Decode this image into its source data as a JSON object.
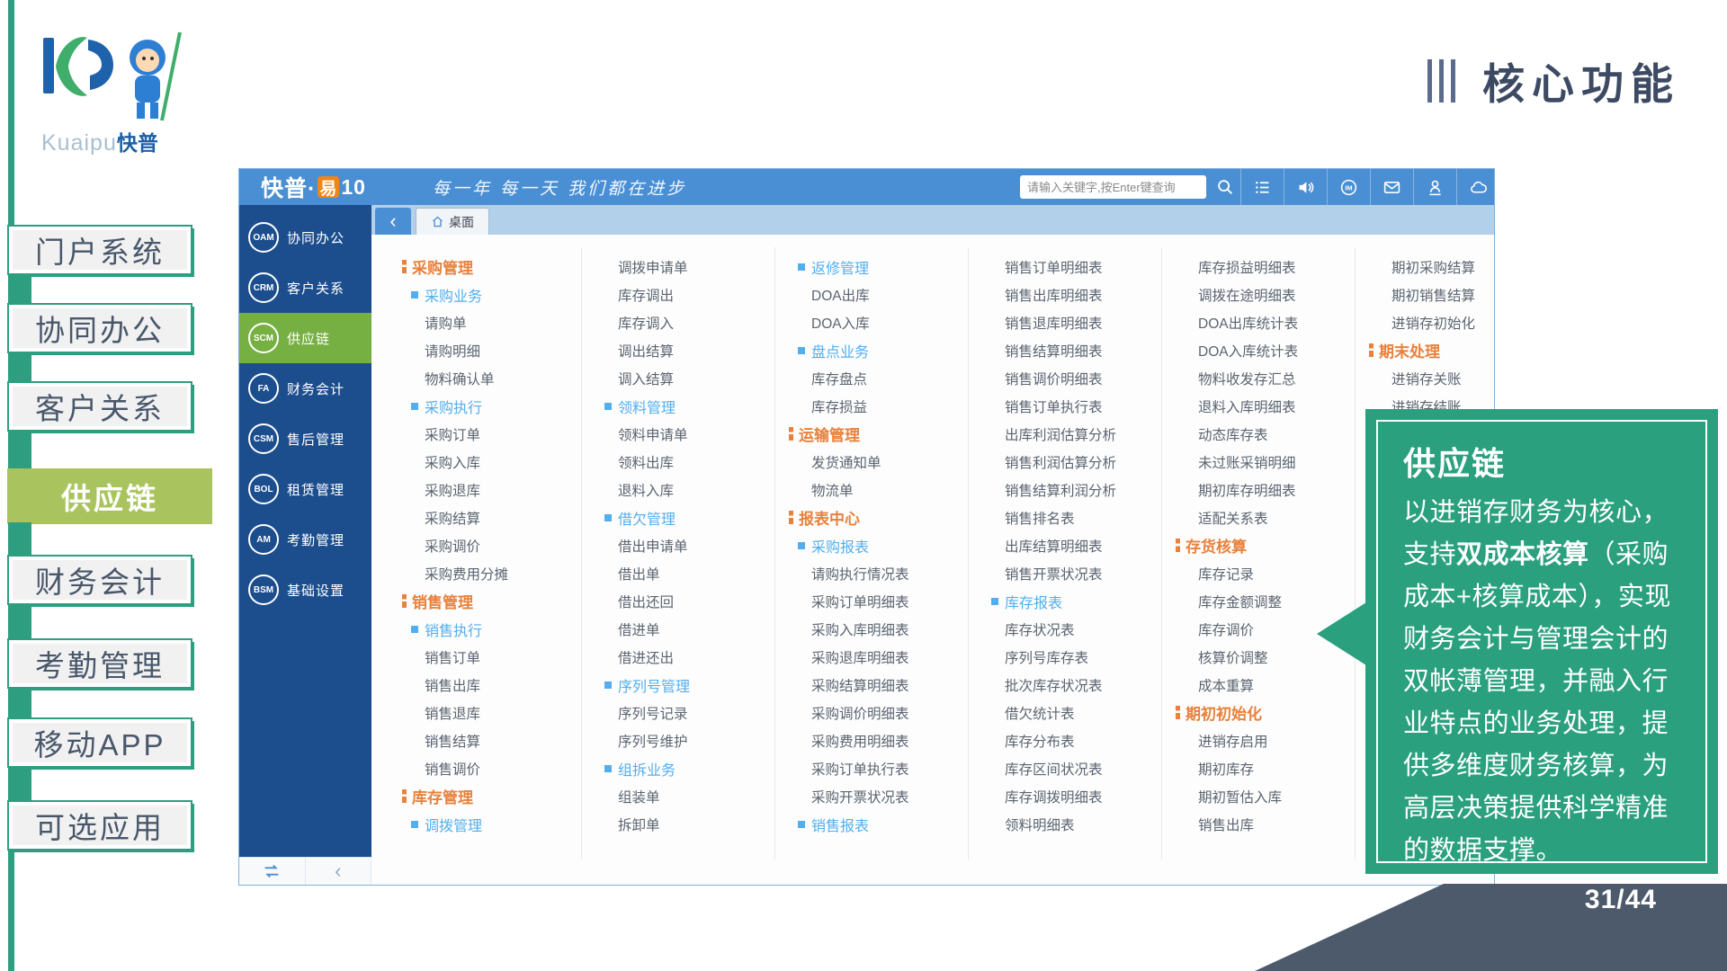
{
  "slide": {
    "title": "核心功能",
    "page_number": "31/44"
  },
  "logo": {
    "brand_en": "Kuaipu",
    "brand_cn": "快普"
  },
  "side_nav": {
    "items": [
      {
        "id": "portal",
        "label": "门户系统",
        "active": false
      },
      {
        "id": "office",
        "label": "协同办公",
        "active": false
      },
      {
        "id": "crm",
        "label": "客户关系",
        "active": false
      },
      {
        "id": "scm",
        "label": "供应链",
        "active": true
      },
      {
        "id": "finance",
        "label": "财务会计",
        "active": false
      },
      {
        "id": "attendance",
        "label": "考勤管理",
        "active": false
      },
      {
        "id": "mobile-app",
        "label": "移动APP",
        "active": false
      },
      {
        "id": "optional",
        "label": "可选应用",
        "active": false
      }
    ]
  },
  "app": {
    "header": {
      "product": "快普·",
      "product_yi": "易",
      "version": "10",
      "slogan": "每一年 每一天 我们都在进步",
      "search_placeholder": "请输入关键字,按Enter键查询",
      "icons": [
        "list-icon",
        "speaker-icon",
        "im-icon",
        "mail-icon",
        "user-icon",
        "cloud-icon"
      ]
    },
    "nav": {
      "items": [
        {
          "code": "OAM",
          "label": "协同办公",
          "active": false
        },
        {
          "code": "CRM",
          "label": "客户关系",
          "active": false
        },
        {
          "code": "SCM",
          "label": "供应链",
          "active": true
        },
        {
          "code": "FA",
          "label": "财务会计",
          "active": false
        },
        {
          "code": "CSM",
          "label": "售后管理",
          "active": false
        },
        {
          "code": "BOL",
          "label": "租赁管理",
          "active": false
        },
        {
          "code": "AM",
          "label": "考勤管理",
          "active": false
        },
        {
          "code": "BSM",
          "label": "基础设置",
          "active": false
        }
      ]
    },
    "tabbar": {
      "tab": "桌面"
    },
    "columns": [
      [
        {
          "t": "c",
          "label": "采购管理"
        },
        {
          "t": "s",
          "label": "采购业务"
        },
        {
          "t": "i",
          "label": "请购单"
        },
        {
          "t": "i",
          "label": "请购明细"
        },
        {
          "t": "i",
          "label": "物料确认单"
        },
        {
          "t": "s",
          "label": "采购执行"
        },
        {
          "t": "i",
          "label": "采购订单"
        },
        {
          "t": "i",
          "label": "采购入库"
        },
        {
          "t": "i",
          "label": "采购退库"
        },
        {
          "t": "i",
          "label": "采购结算"
        },
        {
          "t": "i",
          "label": "采购调价"
        },
        {
          "t": "i",
          "label": "采购费用分摊"
        },
        {
          "t": "c",
          "label": "销售管理"
        },
        {
          "t": "s",
          "label": "销售执行"
        },
        {
          "t": "i",
          "label": "销售订单"
        },
        {
          "t": "i",
          "label": "销售出库"
        },
        {
          "t": "i",
          "label": "销售退库"
        },
        {
          "t": "i",
          "label": "销售结算"
        },
        {
          "t": "i",
          "label": "销售调价"
        },
        {
          "t": "c",
          "label": "库存管理"
        },
        {
          "t": "s",
          "label": "调拨管理"
        }
      ],
      [
        {
          "t": "i",
          "label": "调拨申请单"
        },
        {
          "t": "i",
          "label": "库存调出"
        },
        {
          "t": "i",
          "label": "库存调入"
        },
        {
          "t": "i",
          "label": "调出结算"
        },
        {
          "t": "i",
          "label": "调入结算"
        },
        {
          "t": "s",
          "label": "领料管理"
        },
        {
          "t": "i",
          "label": "领料申请单"
        },
        {
          "t": "i",
          "label": "领料出库"
        },
        {
          "t": "i",
          "label": "退料入库"
        },
        {
          "t": "s",
          "label": "借欠管理"
        },
        {
          "t": "i",
          "label": "借出申请单"
        },
        {
          "t": "i",
          "label": "借出单"
        },
        {
          "t": "i",
          "label": "借出还回"
        },
        {
          "t": "i",
          "label": "借进单"
        },
        {
          "t": "i",
          "label": "借进还出"
        },
        {
          "t": "s",
          "label": "序列号管理"
        },
        {
          "t": "i",
          "label": "序列号记录"
        },
        {
          "t": "i",
          "label": "序列号维护"
        },
        {
          "t": "s",
          "label": "组拆业务"
        },
        {
          "t": "i",
          "label": "组装单"
        },
        {
          "t": "i",
          "label": "拆卸单"
        }
      ],
      [
        {
          "t": "s",
          "label": "返修管理"
        },
        {
          "t": "i",
          "label": "DOA出库"
        },
        {
          "t": "i",
          "label": "DOA入库"
        },
        {
          "t": "s",
          "label": "盘点业务"
        },
        {
          "t": "i",
          "label": "库存盘点"
        },
        {
          "t": "i",
          "label": "库存损益"
        },
        {
          "t": "c",
          "label": "运输管理"
        },
        {
          "t": "i",
          "label": "发货通知单"
        },
        {
          "t": "i",
          "label": "物流单"
        },
        {
          "t": "c",
          "label": "报表中心"
        },
        {
          "t": "s",
          "label": "采购报表"
        },
        {
          "t": "i",
          "label": "请购执行情况表"
        },
        {
          "t": "i",
          "label": "采购订单明细表"
        },
        {
          "t": "i",
          "label": "采购入库明细表"
        },
        {
          "t": "i",
          "label": "采购退库明细表"
        },
        {
          "t": "i",
          "label": "采购结算明细表"
        },
        {
          "t": "i",
          "label": "采购调价明细表"
        },
        {
          "t": "i",
          "label": "采购费用明细表"
        },
        {
          "t": "i",
          "label": "采购订单执行表"
        },
        {
          "t": "i",
          "label": "采购开票状况表"
        },
        {
          "t": "s",
          "label": "销售报表"
        }
      ],
      [
        {
          "t": "i",
          "label": "销售订单明细表"
        },
        {
          "t": "i",
          "label": "销售出库明细表"
        },
        {
          "t": "i",
          "label": "销售退库明细表"
        },
        {
          "t": "i",
          "label": "销售结算明细表"
        },
        {
          "t": "i",
          "label": "销售调价明细表"
        },
        {
          "t": "i",
          "label": "销售订单执行表"
        },
        {
          "t": "i",
          "label": "出库利润估算分析"
        },
        {
          "t": "i",
          "label": "销售利润估算分析"
        },
        {
          "t": "i",
          "label": "销售结算利润分析"
        },
        {
          "t": "i",
          "label": "销售排名表"
        },
        {
          "t": "i",
          "label": "出库结算明细表"
        },
        {
          "t": "i",
          "label": "销售开票状况表"
        },
        {
          "t": "s",
          "label": "库存报表"
        },
        {
          "t": "i",
          "label": "库存状况表"
        },
        {
          "t": "i",
          "label": "序列号库存表"
        },
        {
          "t": "i",
          "label": "批次库存状况表"
        },
        {
          "t": "i",
          "label": "借欠统计表"
        },
        {
          "t": "i",
          "label": "库存分布表"
        },
        {
          "t": "i",
          "label": "库存区间状况表"
        },
        {
          "t": "i",
          "label": "库存调拨明细表"
        },
        {
          "t": "i",
          "label": "领料明细表"
        }
      ],
      [
        {
          "t": "i",
          "label": "库存损益明细表"
        },
        {
          "t": "i",
          "label": "调拨在途明细表"
        },
        {
          "t": "i",
          "label": "DOA出库统计表"
        },
        {
          "t": "i",
          "label": "DOA入库统计表"
        },
        {
          "t": "i",
          "label": "物料收发存汇总"
        },
        {
          "t": "i",
          "label": "退料入库明细表"
        },
        {
          "t": "i",
          "label": "动态库存表"
        },
        {
          "t": "i",
          "label": "未过账采销明细"
        },
        {
          "t": "i",
          "label": "期初库存明细表"
        },
        {
          "t": "i",
          "label": "适配关系表"
        },
        {
          "t": "c",
          "label": "存货核算"
        },
        {
          "t": "i",
          "label": "库存记录"
        },
        {
          "t": "i",
          "label": "库存金额调整"
        },
        {
          "t": "i",
          "label": "库存调价"
        },
        {
          "t": "i",
          "label": "核算价调整"
        },
        {
          "t": "i",
          "label": "成本重算"
        },
        {
          "t": "c",
          "label": "期初初始化"
        },
        {
          "t": "i",
          "label": "进销存启用"
        },
        {
          "t": "i",
          "label": "期初库存"
        },
        {
          "t": "i",
          "label": "期初暂估入库"
        },
        {
          "t": "i",
          "label": "销售出库"
        }
      ],
      [
        {
          "t": "i",
          "label": "期初采购结算"
        },
        {
          "t": "i",
          "label": "期初销售结算"
        },
        {
          "t": "i",
          "label": "进销存初始化"
        },
        {
          "t": "c",
          "label": "期末处理"
        },
        {
          "t": "i",
          "label": "进销存关账"
        },
        {
          "t": "i",
          "label": "进销存结账"
        }
      ]
    ]
  },
  "callout": {
    "title": "供应链",
    "body": [
      {
        "text": "以进销存财务为核心，支持",
        "bold": false
      },
      {
        "text": "双成本核算",
        "bold": true
      },
      {
        "text": "（采购成本+核算成本），实现财务会计与管理会计的双帐薄管理，并融入行业特点的业务处理，提供多维度财务核算，为高层决策提供科学精准的数据支撑。",
        "bold": false
      }
    ]
  },
  "colors": {
    "accent_green": "#2e9e80",
    "active_side_item": "#a9c45e",
    "header_blue": "#4a8fd3",
    "app_sidebar_blue": "#1c4e8e",
    "nav_active_green": "#76b043",
    "category_orange": "#e8813c",
    "subcategory_blue": "#52aeee",
    "callout_green": "#2aa07e",
    "wedge_gray": "#4d5a6c",
    "title_color": "#3d4a63",
    "yi_badge_orange": "#f08519"
  }
}
